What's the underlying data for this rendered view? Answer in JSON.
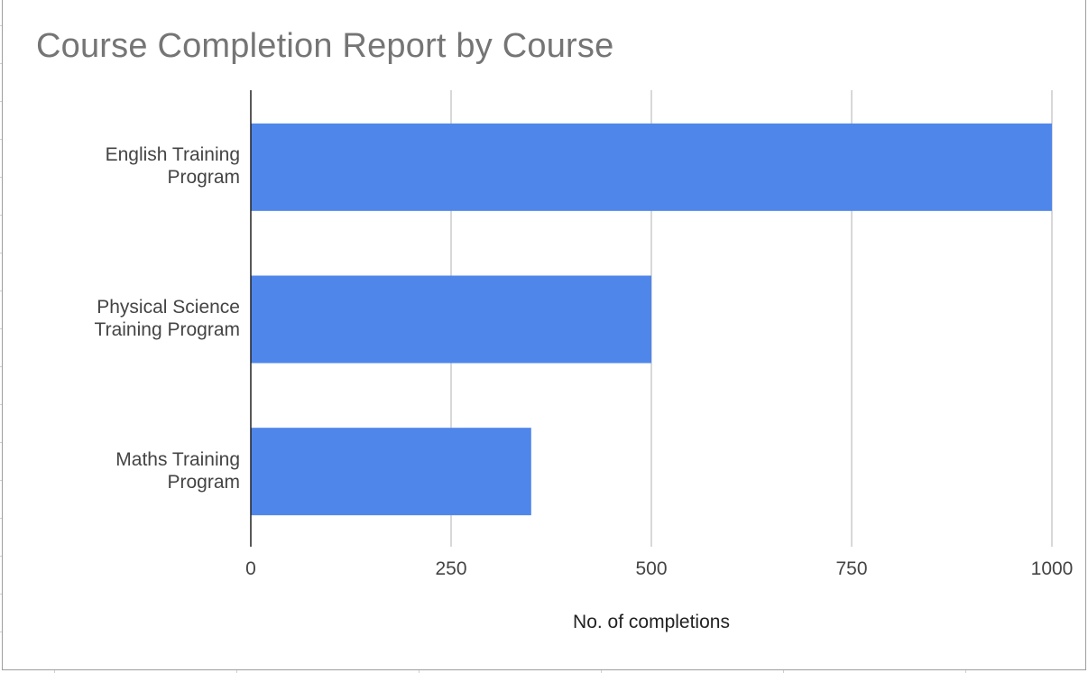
{
  "chart_data": {
    "type": "bar",
    "orientation": "horizontal",
    "title": "Course Completion Report by Course",
    "xlabel": "No. of completions",
    "ylabel": "",
    "categories": [
      [
        "English Training",
        "Program"
      ],
      [
        "Physical Science",
        "Training Program"
      ],
      [
        "Maths Training",
        "Program"
      ]
    ],
    "values": [
      1000,
      500,
      350
    ],
    "xlim": [
      0,
      1000
    ],
    "xticks": [
      "0",
      "250",
      "500",
      "750",
      "1000"
    ],
    "grid": true,
    "legend": "none",
    "bar_color": "#4f86ea"
  }
}
